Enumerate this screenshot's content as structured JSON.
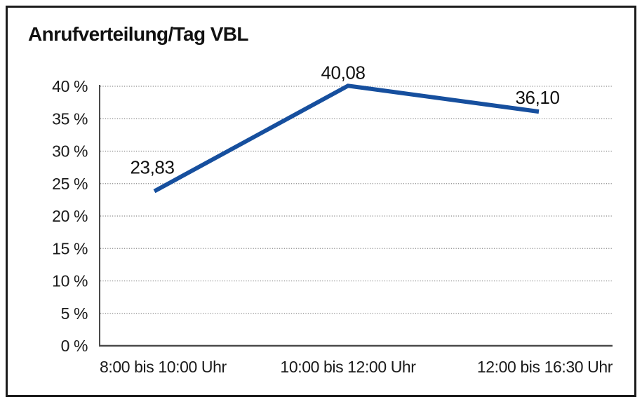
{
  "chart_data": {
    "type": "line",
    "title": "Anrufverteilung/Tag VBL",
    "categories": [
      "8:00 bis 10:00 Uhr",
      "10:00 bis 12:00 Uhr",
      "12:00 bis 16:30 Uhr"
    ],
    "values": [
      23.83,
      40.08,
      36.1
    ],
    "data_labels": [
      "23,83",
      "40,08",
      "36,10"
    ],
    "xlabel": "",
    "ylabel": "",
    "ylim": [
      0,
      40
    ],
    "ytick_step": 5,
    "ytick_labels": [
      "0 %",
      "5 %",
      "10 %",
      "15 %",
      "20 %",
      "25 %",
      "30 %",
      "35 %",
      "40 %"
    ],
    "grid": "horizontal-dotted",
    "legend": "none"
  },
  "colors": {
    "line": "#164F9E",
    "grid": "#8c8c8c",
    "axis": "#4a4a4a",
    "text": "#1a1a1a",
    "frame_border": "#1b1b1b",
    "background": "#ffffff"
  }
}
